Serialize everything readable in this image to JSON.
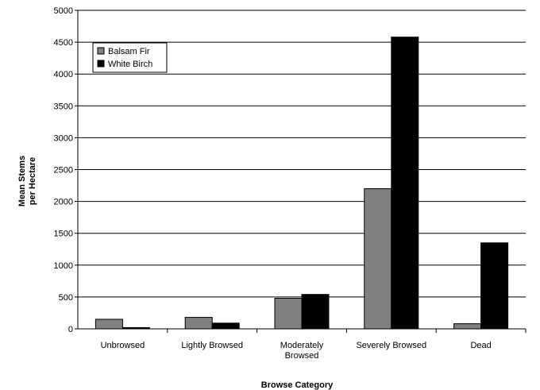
{
  "chart_data": {
    "type": "bar",
    "title": "",
    "xlabel": "Browse Category",
    "ylabel": "Mean Stems per Hectare",
    "ylabel_lines": [
      "Mean Stems",
      "per Hectare"
    ],
    "categories": [
      "Unbrowsed",
      "Lightly Browsed",
      "Moderately Browsed",
      "Severely Browsed",
      "Dead"
    ],
    "category_lines": [
      [
        "Unbrowsed"
      ],
      [
        "Lightly Browsed"
      ],
      [
        "Moderately",
        "Browsed"
      ],
      [
        "Severely Browsed"
      ],
      [
        "Dead"
      ]
    ],
    "series": [
      {
        "name": "Balsam Fir",
        "color": "#808080",
        "values": [
          150,
          180,
          480,
          2200,
          80
        ]
      },
      {
        "name": "White Birch",
        "color": "#000000",
        "values": [
          20,
          90,
          540,
          4580,
          1350
        ]
      }
    ],
    "ylim": [
      0,
      5000
    ],
    "yticks": [
      0,
      500,
      1000,
      1500,
      2000,
      2500,
      3000,
      3500,
      4000,
      4500,
      5000
    ],
    "grid": true,
    "legend_position": "top-left"
  }
}
